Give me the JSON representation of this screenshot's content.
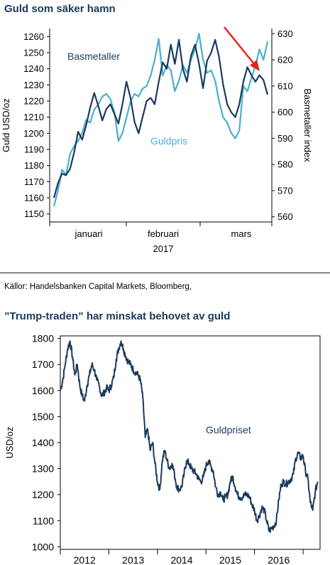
{
  "chart_data": [
    {
      "type": "line",
      "title": "Guld som säker hamn",
      "ylabel": "Guld USD/oz",
      "y2label": "Basmetaller index",
      "x_tick_labels": [
        "januari",
        "februari",
        "mars"
      ],
      "x_year_label": "2017",
      "ylim": [
        1145,
        1265
      ],
      "y_ticks": [
        1150,
        1160,
        1170,
        1180,
        1190,
        1200,
        1210,
        1220,
        1230,
        1240,
        1250,
        1260
      ],
      "y2lim": [
        558,
        632
      ],
      "y2_ticks": [
        560,
        570,
        580,
        590,
        600,
        610,
        620,
        630
      ],
      "grid": false,
      "x_index_range": [
        0,
        53
      ],
      "series": [
        {
          "name": "Basmetaller",
          "axis": "left",
          "color": "#1b3a5c",
          "values": [
            1160,
            1169,
            1175,
            1174,
            1178,
            1188,
            1201,
            1196,
            1205,
            1216,
            1225,
            1217,
            1208,
            1215,
            1218,
            1212,
            1206,
            1218,
            1232,
            1222,
            1207,
            1200,
            1210,
            1220,
            1222,
            1218,
            1232,
            1244,
            1240,
            1255,
            1243,
            1258,
            1240,
            1232,
            1248,
            1255,
            1243,
            1228,
            1245,
            1250,
            1258,
            1247,
            1230,
            1218,
            1213,
            1210,
            1218,
            1232,
            1241,
            1236,
            1232,
            1236,
            1233,
            1224
          ]
        },
        {
          "name": "Guldpris",
          "axis": "right",
          "color": "#4aaed3",
          "values": [
            564,
            570,
            578,
            576,
            584,
            587,
            589,
            592,
            597,
            596,
            601,
            603,
            606,
            607,
            605,
            600,
            589,
            592,
            598,
            604,
            607,
            606,
            609,
            610,
            614,
            620,
            628,
            614,
            618,
            616,
            608,
            612,
            618,
            615,
            620,
            624,
            630,
            620,
            615,
            616,
            612,
            604,
            598,
            596,
            592,
            590,
            593,
            610,
            608,
            613,
            618,
            624,
            620,
            627
          ]
        }
      ],
      "annotation": "red-arrow"
    },
    {
      "type": "line",
      "title": "”Trump-traden” har minskat behovet av guld",
      "ylabel": "USD/oz",
      "x_tick_labels": [
        "2012",
        "2013",
        "2014",
        "2015",
        "2016"
      ],
      "ylim": [
        990,
        1810
      ],
      "y_ticks": [
        1000,
        1100,
        1200,
        1300,
        1400,
        1500,
        1600,
        1700,
        1800
      ],
      "xlim": [
        2011.5,
        2016.85
      ],
      "grid": false,
      "series": [
        {
          "name": "Guldpriset",
          "color": "#1b3a5c",
          "x": [
            2011.5,
            2011.55,
            2011.6,
            2011.65,
            2011.7,
            2011.75,
            2011.8,
            2011.85,
            2011.9,
            2011.95,
            2012.0,
            2012.05,
            2012.1,
            2012.15,
            2012.2,
            2012.25,
            2012.3,
            2012.35,
            2012.4,
            2012.45,
            2012.5,
            2012.55,
            2012.6,
            2012.65,
            2012.7,
            2012.75,
            2012.8,
            2012.85,
            2012.9,
            2012.95,
            2013.0,
            2013.05,
            2013.1,
            2013.15,
            2013.2,
            2013.25,
            2013.3,
            2013.35,
            2013.4,
            2013.45,
            2013.5,
            2013.55,
            2013.6,
            2013.65,
            2013.7,
            2013.75,
            2013.8,
            2013.85,
            2013.9,
            2013.95,
            2014.0,
            2014.05,
            2014.1,
            2014.15,
            2014.2,
            2014.25,
            2014.3,
            2014.35,
            2014.4,
            2014.45,
            2014.5,
            2014.55,
            2014.6,
            2014.65,
            2014.7,
            2014.75,
            2014.8,
            2014.85,
            2014.9,
            2014.95,
            2015.0,
            2015.05,
            2015.1,
            2015.15,
            2015.2,
            2015.25,
            2015.3,
            2015.35,
            2015.4,
            2015.45,
            2015.5,
            2015.55,
            2015.6,
            2015.65,
            2015.7,
            2015.75,
            2015.8,
            2015.85,
            2015.9,
            2015.95,
            2016.0,
            2016.05,
            2016.1,
            2016.15,
            2016.2,
            2016.25,
            2016.3,
            2016.35,
            2016.4,
            2016.45,
            2016.5,
            2016.55,
            2016.6,
            2016.65,
            2016.7,
            2016.75,
            2016.8
          ],
          "values": [
            1600,
            1640,
            1700,
            1760,
            1790,
            1730,
            1660,
            1700,
            1620,
            1580,
            1560,
            1620,
            1660,
            1700,
            1680,
            1640,
            1620,
            1580,
            1590,
            1610,
            1600,
            1620,
            1650,
            1720,
            1760,
            1790,
            1760,
            1730,
            1710,
            1700,
            1680,
            1670,
            1660,
            1640,
            1570,
            1420,
            1450,
            1370,
            1400,
            1320,
            1250,
            1220,
            1330,
            1370,
            1330,
            1300,
            1320,
            1280,
            1230,
            1220,
            1230,
            1280,
            1330,
            1320,
            1300,
            1290,
            1280,
            1260,
            1250,
            1270,
            1310,
            1330,
            1310,
            1290,
            1230,
            1200,
            1210,
            1180,
            1190,
            1200,
            1250,
            1270,
            1230,
            1200,
            1190,
            1190,
            1200,
            1200,
            1190,
            1160,
            1140,
            1100,
            1120,
            1150,
            1140,
            1100,
            1060,
            1070,
            1080,
            1100,
            1180,
            1240,
            1250,
            1240,
            1250,
            1260,
            1280,
            1340,
            1360,
            1340,
            1350,
            1290,
            1260,
            1170,
            1140,
            1210,
            1250
          ]
        }
      ]
    }
  ],
  "source": "Källor: Handelsbanken Capital Markets, Bloomberg,"
}
